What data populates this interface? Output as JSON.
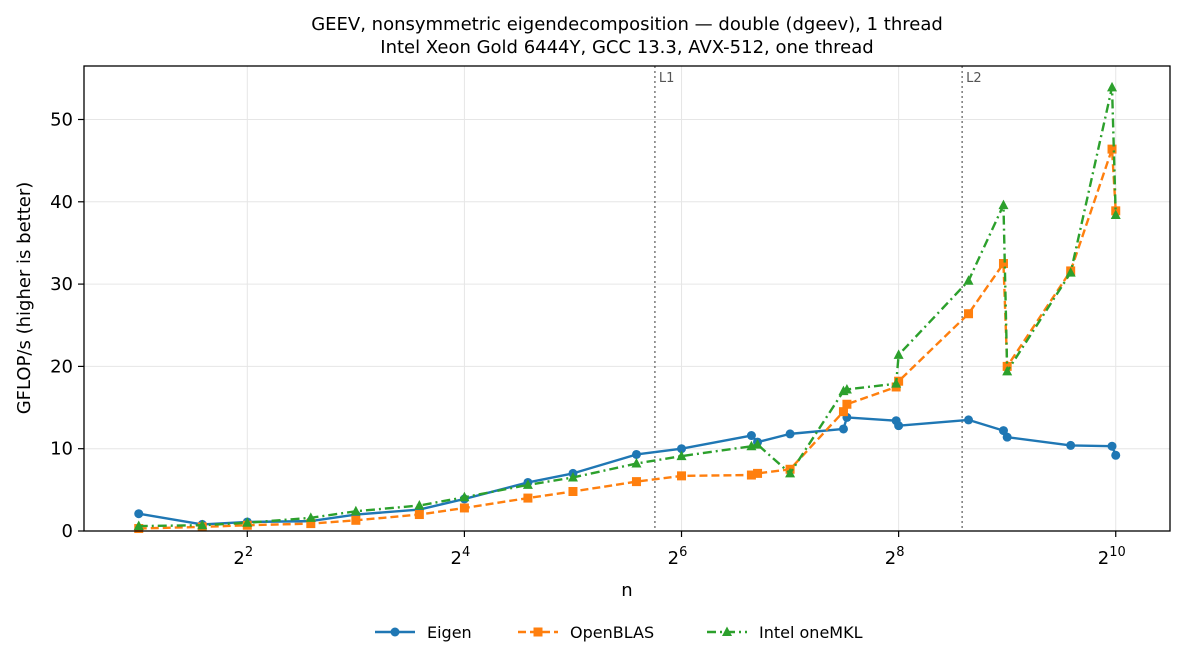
{
  "chart_data": {
    "type": "line",
    "title": "GEEV, nonsymmetric eigendecomposition — double (dgeev), 1 thread",
    "subtitle": "Intel Xeon Gold 6444Y, GCC 13.3, AVX-512, one thread",
    "xlabel": "n",
    "ylabel": "GFLOP/s (higher is better)",
    "x_scale": "log2",
    "xlim": [
      1.41,
      1448
    ],
    "ylim": [
      0,
      56.5
    ],
    "x_ticks": [
      {
        "base": "2",
        "exp": "2",
        "value": 4
      },
      {
        "base": "2",
        "exp": "4",
        "value": 16
      },
      {
        "base": "2",
        "exp": "6",
        "value": 64
      },
      {
        "base": "2",
        "exp": "8",
        "value": 256
      },
      {
        "base": "2",
        "exp": "10",
        "value": 1024
      }
    ],
    "y_ticks": [
      {
        "label": "0",
        "value": 0
      },
      {
        "label": "10",
        "value": 10
      },
      {
        "label": "20",
        "value": 20
      },
      {
        "label": "30",
        "value": 30
      },
      {
        "label": "40",
        "value": 40
      },
      {
        "label": "50",
        "value": 50
      }
    ],
    "grid": true,
    "legend_position": "bottom-center",
    "cache_lines": [
      {
        "label": "L1",
        "x": 54
      },
      {
        "label": "L2",
        "x": 384
      }
    ],
    "series": [
      {
        "name": "Eigen",
        "color": "#1f77b4",
        "marker": "circle",
        "dash": "solid",
        "x": [
          2,
          3,
          4,
          6,
          8,
          12,
          16,
          24,
          32,
          48,
          64,
          100,
          104,
          128,
          180,
          184,
          252,
          256,
          400,
          500,
          512,
          768,
          1000,
          1024
        ],
        "y": [
          2.1,
          0.8,
          1.1,
          1.2,
          2.0,
          2.6,
          3.9,
          5.9,
          7.0,
          9.3,
          10.0,
          11.6,
          10.8,
          11.8,
          12.4,
          13.8,
          13.4,
          12.8,
          13.5,
          12.2,
          11.4,
          10.4,
          10.3,
          9.2
        ]
      },
      {
        "name": "OpenBLAS",
        "color": "#ff7f0e",
        "marker": "square",
        "dash": "dashed",
        "x": [
          2,
          3,
          4,
          6,
          8,
          12,
          16,
          24,
          32,
          48,
          64,
          100,
          104,
          128,
          180,
          184,
          252,
          256,
          400,
          500,
          512,
          768,
          1000,
          1024
        ],
        "y": [
          0.3,
          0.5,
          0.7,
          0.9,
          1.3,
          2.0,
          2.8,
          4.0,
          4.8,
          6.0,
          6.7,
          6.8,
          7.0,
          7.5,
          14.5,
          15.4,
          17.5,
          18.2,
          26.4,
          32.5,
          20.0,
          31.6,
          46.4,
          38.9
        ]
      },
      {
        "name": "Intel oneMKL",
        "color": "#2ca02c",
        "marker": "triangle",
        "dash": "dashdot",
        "x": [
          2,
          3,
          4,
          6,
          8,
          12,
          16,
          24,
          32,
          48,
          64,
          100,
          104,
          128,
          180,
          184,
          252,
          256,
          400,
          500,
          512,
          768,
          1000,
          1024
        ],
        "y": [
          0.6,
          0.7,
          1.0,
          1.6,
          2.4,
          3.1,
          4.1,
          5.6,
          6.5,
          8.2,
          9.1,
          10.3,
          10.5,
          7.0,
          17.0,
          17.2,
          17.9,
          21.4,
          30.4,
          39.6,
          19.4,
          31.4,
          53.9,
          38.4
        ]
      }
    ]
  }
}
